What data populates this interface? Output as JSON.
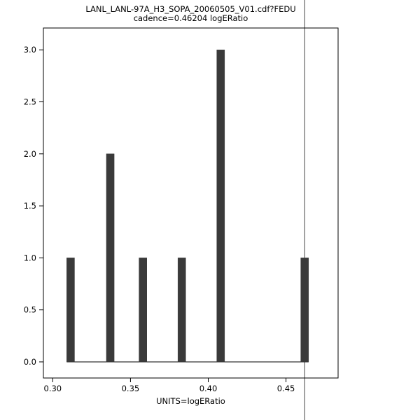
{
  "chart_data": {
    "type": "bar",
    "title": "LANL_LANL-97A_H3_SOPA_20060505_V01.cdf?FEDU",
    "subtitle": "cadence=0.46204 logERatio",
    "xlabel": "UNITS=logERatio",
    "ylabel": "",
    "xlim": [
      0.294,
      0.4835
    ],
    "ylim": [
      -0.155,
      3.21
    ],
    "xticks": [
      0.3,
      0.35,
      0.4,
      0.45
    ],
    "xtick_labels": [
      "0.30",
      "0.35",
      "0.40",
      "0.45"
    ],
    "yticks": [
      0.0,
      0.5,
      1.0,
      1.5,
      2.0,
      2.5,
      3.0
    ],
    "ytick_labels": [
      "0.0",
      "0.5",
      "1.0",
      "1.5",
      "2.0",
      "2.5",
      "3.0"
    ],
    "bars": [
      {
        "x": 0.3115,
        "height": 1
      },
      {
        "x": 0.337,
        "height": 2
      },
      {
        "x": 0.358,
        "height": 1
      },
      {
        "x": 0.383,
        "height": 1
      },
      {
        "x": 0.408,
        "height": 3
      },
      {
        "x": 0.462,
        "height": 1
      }
    ],
    "bar_width": 0.005,
    "baseline": {
      "y": 0,
      "x_start": 0.309,
      "x_end": 0.4645
    },
    "vline_x": 0.46204,
    "legend": "none",
    "grid": "off",
    "colors": {
      "bar": "#3a3a3a",
      "axis": "#000000",
      "background": "#ffffff",
      "vline": "#444444"
    }
  }
}
